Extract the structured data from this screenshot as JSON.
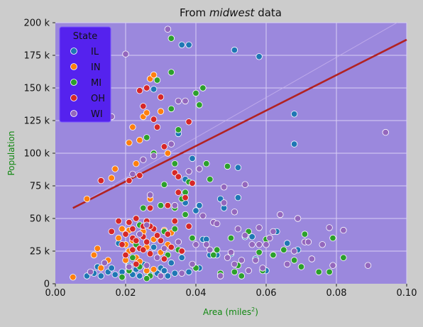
{
  "chart_data": {
    "type": "scatter",
    "title_prefix": "From ",
    "title_emph": "midwest",
    "title_suffix": " data",
    "xlabel": "Area (miles",
    "xlabel_sup": "2",
    "xlabel_close": ")",
    "ylabel": "Population",
    "xlim": [
      0.0,
      0.1
    ],
    "ylim": [
      0,
      200000
    ],
    "x_ticks": [
      0.0,
      0.02,
      0.04,
      0.06,
      0.08,
      0.1
    ],
    "x_tick_labels": [
      "0.00",
      "0.02",
      "0.04",
      "0.06",
      "0.08",
      "0.10"
    ],
    "y_ticks": [
      0,
      25000,
      50000,
      75000,
      100000,
      125000,
      150000,
      175000,
      200000
    ],
    "y_tick_labels": [
      "0",
      "25 k",
      "50 k",
      "75 k",
      "100 k",
      "125 k",
      "150 k",
      "175 k",
      "200 k"
    ],
    "grid": true,
    "legend": {
      "title": "State",
      "placement": "top-left",
      "entries": [
        "IL",
        "IN",
        "MI",
        "OH",
        "WI"
      ]
    },
    "colors": {
      "IL": "#1f77b4",
      "IN": "#ff7f0e",
      "MI": "#2ca02c",
      "OH": "#d62728",
      "WI": "#9467bd",
      "plot_bg": "#9b88dd",
      "figure_bg": "#cccccc",
      "legend_bg": "#5522ee",
      "legend_border": "#7755ff",
      "regression": "#b22222",
      "axis_label": "#118811"
    },
    "regression_line": {
      "x": [
        0.005,
        0.1
      ],
      "y": [
        58000,
        187000
      ]
    },
    "series": [
      {
        "name": "IL",
        "points": [
          [
            0.009,
            6000
          ],
          [
            0.011,
            8000
          ],
          [
            0.012,
            13000
          ],
          [
            0.013,
            6000
          ],
          [
            0.015,
            9000
          ],
          [
            0.016,
            12000
          ],
          [
            0.017,
            7000
          ],
          [
            0.018,
            31000
          ],
          [
            0.019,
            9000
          ],
          [
            0.021,
            14000
          ],
          [
            0.022,
            7000
          ],
          [
            0.023,
            11000
          ],
          [
            0.024,
            6000
          ],
          [
            0.025,
            15000
          ],
          [
            0.026,
            9000
          ],
          [
            0.027,
            7000
          ],
          [
            0.028,
            28000
          ],
          [
            0.028,
            149000
          ],
          [
            0.029,
            8000
          ],
          [
            0.03,
            12000
          ],
          [
            0.031,
            10000
          ],
          [
            0.032,
            6000
          ],
          [
            0.033,
            16000
          ],
          [
            0.034,
            8000
          ],
          [
            0.035,
            115000
          ],
          [
            0.036,
            20000
          ],
          [
            0.036,
            183000
          ],
          [
            0.037,
            62000
          ],
          [
            0.038,
            183000
          ],
          [
            0.038,
            9000
          ],
          [
            0.039,
            96000
          ],
          [
            0.04,
            56000
          ],
          [
            0.041,
            60000
          ],
          [
            0.041,
            12000
          ],
          [
            0.042,
            34000
          ],
          [
            0.043,
            34000
          ],
          [
            0.044,
            22000
          ],
          [
            0.046,
            22000
          ],
          [
            0.047,
            65000
          ],
          [
            0.048,
            58000
          ],
          [
            0.05,
            23000
          ],
          [
            0.051,
            179000
          ],
          [
            0.052,
            66000
          ],
          [
            0.052,
            89000
          ],
          [
            0.054,
            36000
          ],
          [
            0.056,
            36000
          ],
          [
            0.057,
            19000
          ],
          [
            0.058,
            174000
          ],
          [
            0.06,
            10000
          ],
          [
            0.062,
            22000
          ],
          [
            0.063,
            40000
          ],
          [
            0.066,
            31000
          ],
          [
            0.068,
            130000
          ],
          [
            0.068,
            107000
          ],
          [
            0.069,
            26000
          ],
          [
            0.037,
            80000
          ]
        ]
      },
      {
        "name": "IN",
        "points": [
          [
            0.005,
            5000
          ],
          [
            0.009,
            65000
          ],
          [
            0.011,
            22000
          ],
          [
            0.012,
            27000
          ],
          [
            0.013,
            12000
          ],
          [
            0.015,
            18000
          ],
          [
            0.016,
            81000
          ],
          [
            0.017,
            88000
          ],
          [
            0.018,
            35000
          ],
          [
            0.019,
            42000
          ],
          [
            0.02,
            18000
          ],
          [
            0.02,
            30000
          ],
          [
            0.021,
            25000
          ],
          [
            0.021,
            108000
          ],
          [
            0.022,
            33000
          ],
          [
            0.022,
            120000
          ],
          [
            0.023,
            92000
          ],
          [
            0.023,
            20000
          ],
          [
            0.024,
            45000
          ],
          [
            0.024,
            110000
          ],
          [
            0.025,
            128000
          ],
          [
            0.025,
            40000
          ],
          [
            0.026,
            131000
          ],
          [
            0.026,
            28000
          ],
          [
            0.027,
            157000
          ],
          [
            0.027,
            65000
          ],
          [
            0.028,
            160000
          ],
          [
            0.028,
            34000
          ],
          [
            0.029,
            37000
          ],
          [
            0.03,
            24000
          ],
          [
            0.03,
            132000
          ],
          [
            0.031,
            41000
          ],
          [
            0.032,
            100000
          ],
          [
            0.032,
            30000
          ],
          [
            0.033,
            39000
          ],
          [
            0.024,
            17000
          ],
          [
            0.021,
            41000
          ],
          [
            0.026,
            10000
          ],
          [
            0.028,
            11000
          ]
        ]
      },
      {
        "name": "MI",
        "points": [
          [
            0.019,
            5000
          ],
          [
            0.021,
            10000
          ],
          [
            0.022,
            20000
          ],
          [
            0.023,
            30000
          ],
          [
            0.024,
            45000
          ],
          [
            0.025,
            58000
          ],
          [
            0.026,
            112000
          ],
          [
            0.027,
            6000
          ],
          [
            0.028,
            100000
          ],
          [
            0.029,
            156000
          ],
          [
            0.03,
            60000
          ],
          [
            0.031,
            40000
          ],
          [
            0.031,
            76000
          ],
          [
            0.032,
            22000
          ],
          [
            0.033,
            134000
          ],
          [
            0.033,
            162000
          ],
          [
            0.033,
            188000
          ],
          [
            0.034,
            58000
          ],
          [
            0.034,
            42000
          ],
          [
            0.034,
            92000
          ],
          [
            0.035,
            26000
          ],
          [
            0.035,
            118000
          ],
          [
            0.036,
            25000
          ],
          [
            0.036,
            65000
          ],
          [
            0.037,
            53000
          ],
          [
            0.037,
            70000
          ],
          [
            0.038,
            78000
          ],
          [
            0.039,
            35000
          ],
          [
            0.04,
            146000
          ],
          [
            0.04,
            12000
          ],
          [
            0.041,
            137000
          ],
          [
            0.042,
            150000
          ],
          [
            0.043,
            92000
          ],
          [
            0.044,
            80000
          ],
          [
            0.045,
            22000
          ],
          [
            0.046,
            26000
          ],
          [
            0.047,
            8000
          ],
          [
            0.049,
            90000
          ],
          [
            0.05,
            35000
          ],
          [
            0.051,
            9000
          ],
          [
            0.052,
            14000
          ],
          [
            0.053,
            6000
          ],
          [
            0.055,
            40000
          ],
          [
            0.058,
            24000
          ],
          [
            0.059,
            10000
          ],
          [
            0.06,
            34000
          ],
          [
            0.062,
            22000
          ],
          [
            0.065,
            26000
          ],
          [
            0.068,
            18000
          ],
          [
            0.07,
            13000
          ],
          [
            0.071,
            38000
          ],
          [
            0.075,
            9000
          ],
          [
            0.078,
            9000
          ],
          [
            0.079,
            35000
          ],
          [
            0.082,
            20000
          ],
          [
            0.024,
            13000
          ],
          [
            0.026,
            4000
          ]
        ]
      },
      {
        "name": "OH",
        "points": [
          [
            0.013,
            79000
          ],
          [
            0.016,
            40000
          ],
          [
            0.018,
            48000
          ],
          [
            0.019,
            30000
          ],
          [
            0.02,
            38000
          ],
          [
            0.02,
            22000
          ],
          [
            0.021,
            47000
          ],
          [
            0.021,
            79000
          ],
          [
            0.022,
            35000
          ],
          [
            0.022,
            42000
          ],
          [
            0.023,
            15000
          ],
          [
            0.023,
            50000
          ],
          [
            0.024,
            27000
          ],
          [
            0.024,
            148000
          ],
          [
            0.024,
            83000
          ],
          [
            0.025,
            136000
          ],
          [
            0.025,
            44000
          ],
          [
            0.025,
            36000
          ],
          [
            0.026,
            48000
          ],
          [
            0.026,
            32000
          ],
          [
            0.026,
            150000
          ],
          [
            0.027,
            58000
          ],
          [
            0.027,
            23000
          ],
          [
            0.028,
            42000
          ],
          [
            0.028,
            126000
          ],
          [
            0.029,
            120000
          ],
          [
            0.029,
            37000
          ],
          [
            0.03,
            33000
          ],
          [
            0.03,
            143000
          ],
          [
            0.031,
            105000
          ],
          [
            0.031,
            19000
          ],
          [
            0.032,
            60000
          ],
          [
            0.032,
            38000
          ],
          [
            0.033,
            28000
          ],
          [
            0.034,
            85000
          ],
          [
            0.034,
            48000
          ],
          [
            0.035,
            70000
          ],
          [
            0.035,
            82000
          ],
          [
            0.036,
            25000
          ],
          [
            0.037,
            66000
          ],
          [
            0.038,
            44000
          ],
          [
            0.038,
            124000
          ],
          [
            0.039,
            77000
          ],
          [
            0.023,
            33000
          ],
          [
            0.025,
            26000
          ],
          [
            0.027,
            44000
          ],
          [
            0.022,
            26000
          ]
        ]
      },
      {
        "name": "WI",
        "points": [
          [
            0.01,
            9000
          ],
          [
            0.014,
            16000
          ],
          [
            0.016,
            128000
          ],
          [
            0.02,
            176000
          ],
          [
            0.021,
            13000
          ],
          [
            0.022,
            84000
          ],
          [
            0.024,
            38000
          ],
          [
            0.025,
            95000
          ],
          [
            0.026,
            45000
          ],
          [
            0.026,
            14000
          ],
          [
            0.027,
            68000
          ],
          [
            0.028,
            98000
          ],
          [
            0.029,
            20000
          ],
          [
            0.03,
            6000
          ],
          [
            0.031,
            27000
          ],
          [
            0.032,
            195000
          ],
          [
            0.033,
            107000
          ],
          [
            0.034,
            60000
          ],
          [
            0.035,
            32000
          ],
          [
            0.035,
            140000
          ],
          [
            0.036,
            8000
          ],
          [
            0.037,
            140000
          ],
          [
            0.038,
            86000
          ],
          [
            0.039,
            15000
          ],
          [
            0.04,
            30000
          ],
          [
            0.041,
            88000
          ],
          [
            0.042,
            52000
          ],
          [
            0.043,
            30000
          ],
          [
            0.044,
            26000
          ],
          [
            0.045,
            47000
          ],
          [
            0.046,
            46000
          ],
          [
            0.047,
            6000
          ],
          [
            0.048,
            74000
          ],
          [
            0.048,
            62000
          ],
          [
            0.049,
            20000
          ],
          [
            0.05,
            24000
          ],
          [
            0.051,
            15000
          ],
          [
            0.052,
            42000
          ],
          [
            0.053,
            18000
          ],
          [
            0.054,
            37000
          ],
          [
            0.055,
            10000
          ],
          [
            0.056,
            30000
          ],
          [
            0.057,
            18000
          ],
          [
            0.058,
            43000
          ],
          [
            0.059,
            12000
          ],
          [
            0.06,
            30000
          ],
          [
            0.061,
            35000
          ],
          [
            0.062,
            40000
          ],
          [
            0.064,
            53000
          ],
          [
            0.066,
            15000
          ],
          [
            0.068,
            25000
          ],
          [
            0.069,
            50000
          ],
          [
            0.071,
            32000
          ],
          [
            0.072,
            32000
          ],
          [
            0.073,
            19000
          ],
          [
            0.076,
            30000
          ],
          [
            0.078,
            43000
          ],
          [
            0.079,
            14000
          ],
          [
            0.082,
            41000
          ],
          [
            0.089,
            14000
          ],
          [
            0.094,
            116000
          ],
          [
            0.054,
            76000
          ],
          [
            0.051,
            55000
          ],
          [
            0.058,
            30000
          ]
        ]
      }
    ]
  }
}
